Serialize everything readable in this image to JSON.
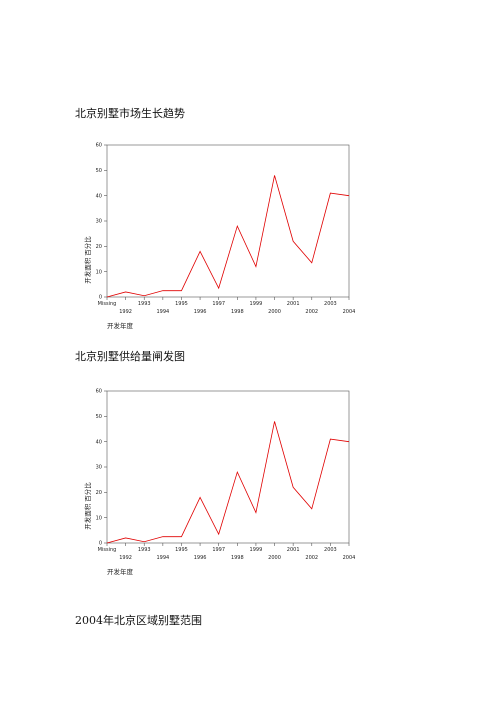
{
  "headings": [
    "北京别墅市场生长趋势",
    "北京别墅供给量闸发图",
    "2004年北京区域别墅范围"
  ],
  "chart_data": [
    {
      "type": "line",
      "y_label": "开发面积 百分比",
      "x_label": "开发年度",
      "categories": [
        "Missing",
        "1992",
        "1993",
        "1994",
        "1995",
        "1996",
        "1997",
        "1998",
        "1999",
        "2000",
        "2001",
        "2002",
        "2003",
        "2004"
      ],
      "values": [
        0,
        2,
        0.5,
        2.5,
        2.5,
        18,
        3.5,
        28,
        12,
        48,
        22,
        13.5,
        41,
        40
      ],
      "color": "#e00000",
      "ylim": [
        0,
        60
      ],
      "yticks": [
        0,
        10,
        20,
        30,
        40,
        50,
        60
      ]
    },
    {
      "type": "line",
      "y_label": "开发面积 百分比",
      "x_label": "开发年度",
      "categories": [
        "Missing",
        "1992",
        "1993",
        "1994",
        "1995",
        "1996",
        "1997",
        "1998",
        "1999",
        "2000",
        "2001",
        "2002",
        "2003",
        "2004"
      ],
      "values": [
        0,
        2,
        0.5,
        2.5,
        2.5,
        18,
        3.5,
        28,
        12,
        48,
        22,
        13.5,
        41,
        40
      ],
      "color": "#e00000",
      "ylim": [
        0,
        60
      ],
      "yticks": [
        0,
        10,
        20,
        30,
        40,
        50,
        60
      ]
    }
  ]
}
